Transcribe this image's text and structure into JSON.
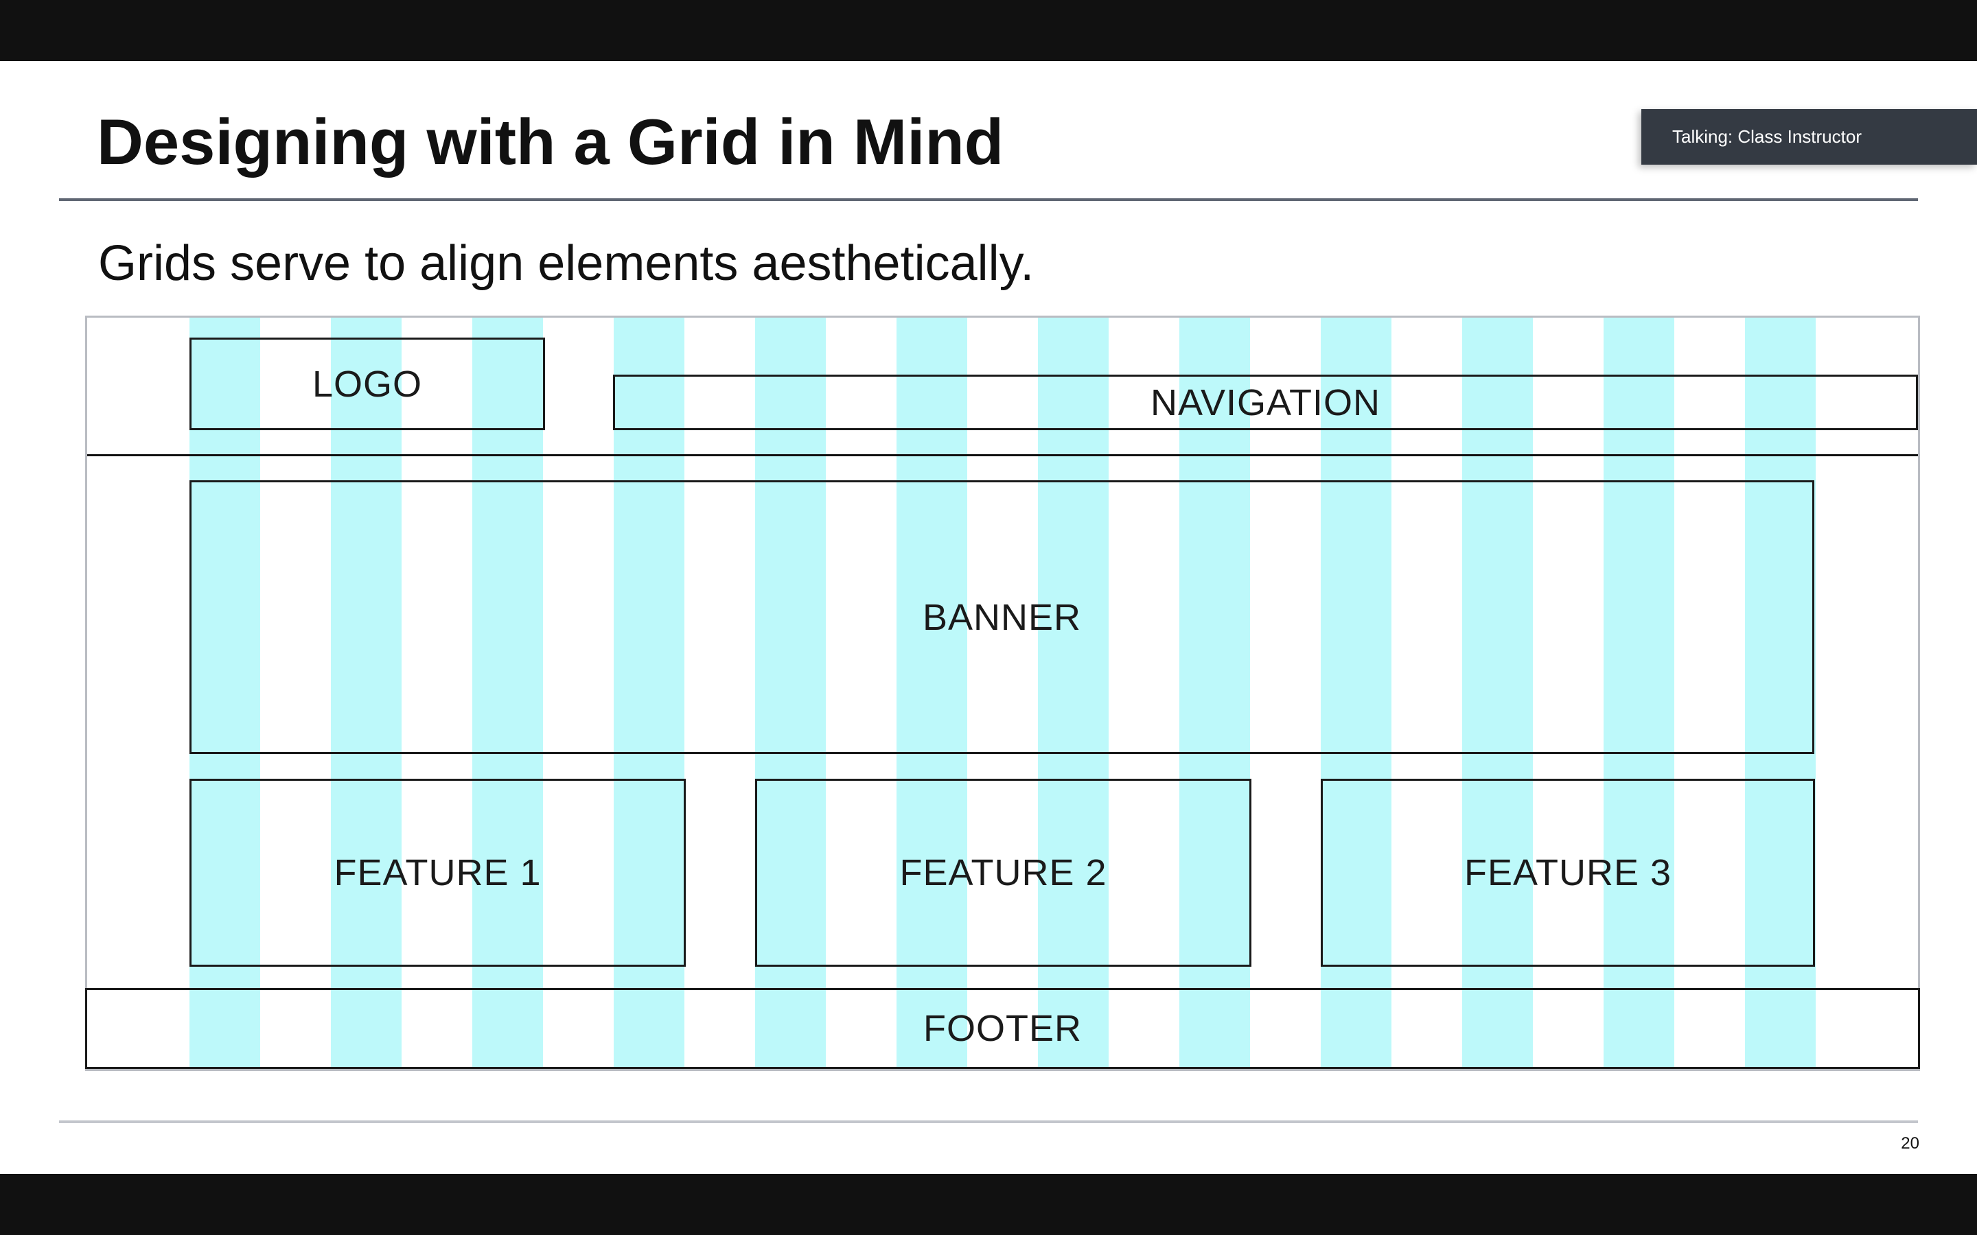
{
  "slide": {
    "title": "Designing with a Grid in Mind",
    "subtitle": "Grids serve to align elements aesthetically.",
    "page_number": "20"
  },
  "status": {
    "talking": "Talking: Class Instructor"
  },
  "wireframe": {
    "logo": "LOGO",
    "navigation": "NAVIGATION",
    "banner": "BANNER",
    "features": [
      "FEATURE 1",
      "FEATURE 2",
      "FEATURE 3"
    ],
    "footer": "FOOTER",
    "column_count": 12
  },
  "colors": {
    "grid_column": "#bdf9fa",
    "outline": "#1a1a1a",
    "badge_background": "#343a43"
  }
}
